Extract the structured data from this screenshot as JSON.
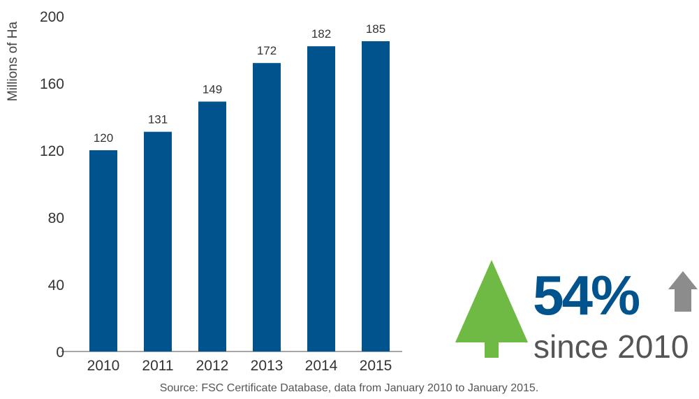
{
  "chart_data": {
    "type": "bar",
    "y_label": "Millions of Ha",
    "categories": [
      "2010",
      "2011",
      "2012",
      "2013",
      "2014",
      "2015"
    ],
    "values": [
      120,
      131,
      149,
      172,
      182,
      185
    ],
    "color": "#00538c",
    "ylim": [
      0,
      200
    ],
    "yticks": [
      0,
      40,
      80,
      120,
      160,
      200
    ],
    "grid": false,
    "annotations": [
      "54%",
      "since 2010"
    ],
    "source": "Source: FSC Certificate Database, data from January 2010 to January 2015."
  }
}
